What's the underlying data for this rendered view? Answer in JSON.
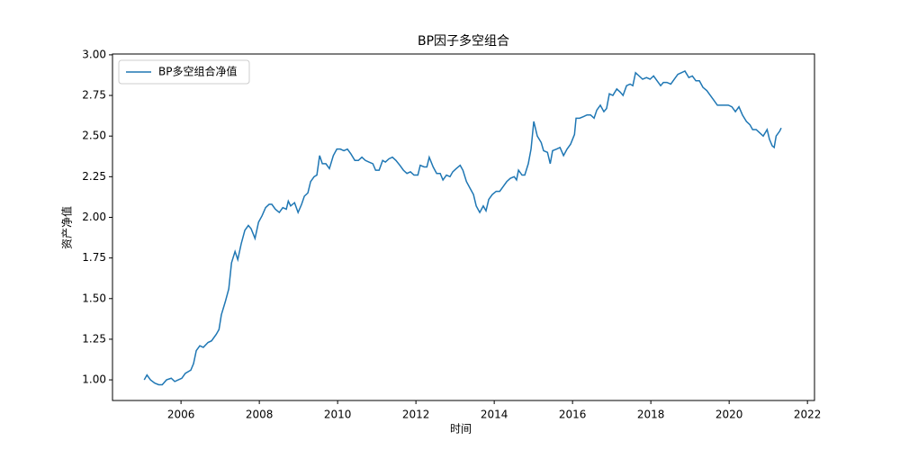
{
  "chart_data": {
    "type": "line",
    "title": "BP因子多空组合",
    "x_label": "时间",
    "y_label": "资产净值",
    "x": [
      2005.06,
      2005.13,
      2005.22,
      2005.33,
      2005.43,
      2005.52,
      2005.63,
      2005.75,
      2005.84,
      2005.93,
      2006.02,
      2006.11,
      2006.25,
      2006.32,
      2006.39,
      2006.48,
      2006.57,
      2006.69,
      2006.78,
      2006.9,
      2006.97,
      2007.03,
      2007.13,
      2007.22,
      2007.29,
      2007.38,
      2007.45,
      2007.54,
      2007.63,
      2007.72,
      2007.79,
      2007.89,
      2007.98,
      2008.07,
      2008.16,
      2008.25,
      2008.32,
      2008.41,
      2008.51,
      2008.6,
      2008.69,
      2008.74,
      2008.8,
      2008.9,
      2008.99,
      2009.08,
      2009.15,
      2009.24,
      2009.31,
      2009.4,
      2009.47,
      2009.54,
      2009.61,
      2009.7,
      2009.79,
      2009.89,
      2009.98,
      2010.07,
      2010.16,
      2010.25,
      2010.34,
      2010.44,
      2010.53,
      2010.62,
      2010.71,
      2010.8,
      2010.9,
      2010.97,
      2011.06,
      2011.15,
      2011.22,
      2011.31,
      2011.4,
      2011.49,
      2011.59,
      2011.68,
      2011.77,
      2011.86,
      2011.95,
      2012.05,
      2012.11,
      2012.21,
      2012.28,
      2012.34,
      2012.44,
      2012.53,
      2012.62,
      2012.69,
      2012.78,
      2012.87,
      2012.94,
      2013.03,
      2013.13,
      2013.2,
      2013.29,
      2013.38,
      2013.47,
      2013.54,
      2013.63,
      2013.72,
      2013.79,
      2013.86,
      2013.95,
      2014.05,
      2014.14,
      2014.23,
      2014.32,
      2014.41,
      2014.51,
      2014.57,
      2014.62,
      2014.71,
      2014.78,
      2014.87,
      2014.94,
      2015.01,
      2015.1,
      2015.2,
      2015.26,
      2015.36,
      2015.43,
      2015.49,
      2015.59,
      2015.68,
      2015.77,
      2015.86,
      2015.95,
      2016.05,
      2016.09,
      2016.18,
      2016.28,
      2016.37,
      2016.46,
      2016.55,
      2016.62,
      2016.71,
      2016.8,
      2016.87,
      2016.94,
      2017.03,
      2017.13,
      2017.22,
      2017.29,
      2017.38,
      2017.47,
      2017.54,
      2017.61,
      2017.7,
      2017.79,
      2017.89,
      2017.98,
      2018.07,
      2018.16,
      2018.25,
      2018.32,
      2018.41,
      2018.51,
      2018.6,
      2018.69,
      2018.78,
      2018.87,
      2018.97,
      2019.06,
      2019.15,
      2019.24,
      2019.33,
      2019.43,
      2019.52,
      2019.61,
      2019.7,
      2019.79,
      2019.89,
      2019.98,
      2020.07,
      2020.16,
      2020.25,
      2020.34,
      2020.44,
      2020.53,
      2020.6,
      2020.69,
      2020.78,
      2020.87,
      2020.97,
      2021.03,
      2021.1,
      2021.15,
      2021.2,
      2021.29,
      2021.33
    ],
    "series": [
      {
        "name": "BP多空组合净值",
        "color": "#1f77b4",
        "values": [
          1.0,
          1.03,
          1.0,
          0.98,
          0.97,
          0.97,
          1.0,
          1.01,
          0.99,
          1.0,
          1.01,
          1.04,
          1.06,
          1.1,
          1.18,
          1.21,
          1.2,
          1.23,
          1.24,
          1.28,
          1.31,
          1.4,
          1.48,
          1.56,
          1.72,
          1.79,
          1.74,
          1.84,
          1.92,
          1.95,
          1.93,
          1.87,
          1.97,
          2.01,
          2.06,
          2.08,
          2.08,
          2.05,
          2.03,
          2.06,
          2.05,
          2.1,
          2.07,
          2.09,
          2.03,
          2.08,
          2.13,
          2.15,
          2.22,
          2.25,
          2.26,
          2.38,
          2.33,
          2.33,
          2.3,
          2.38,
          2.42,
          2.42,
          2.41,
          2.42,
          2.39,
          2.35,
          2.35,
          2.37,
          2.35,
          2.34,
          2.33,
          2.29,
          2.29,
          2.35,
          2.34,
          2.36,
          2.37,
          2.35,
          2.32,
          2.29,
          2.27,
          2.28,
          2.26,
          2.26,
          2.32,
          2.31,
          2.31,
          2.37,
          2.31,
          2.27,
          2.27,
          2.23,
          2.26,
          2.25,
          2.28,
          2.3,
          2.32,
          2.29,
          2.22,
          2.18,
          2.14,
          2.07,
          2.03,
          2.07,
          2.04,
          2.11,
          2.14,
          2.16,
          2.16,
          2.19,
          2.22,
          2.24,
          2.25,
          2.23,
          2.29,
          2.26,
          2.26,
          2.33,
          2.42,
          2.59,
          2.5,
          2.46,
          2.41,
          2.4,
          2.33,
          2.41,
          2.42,
          2.43,
          2.38,
          2.42,
          2.45,
          2.51,
          2.61,
          2.61,
          2.62,
          2.63,
          2.63,
          2.61,
          2.66,
          2.69,
          2.65,
          2.67,
          2.76,
          2.75,
          2.79,
          2.77,
          2.75,
          2.81,
          2.82,
          2.81,
          2.89,
          2.87,
          2.85,
          2.86,
          2.85,
          2.87,
          2.84,
          2.81,
          2.83,
          2.83,
          2.82,
          2.85,
          2.88,
          2.89,
          2.9,
          2.86,
          2.87,
          2.84,
          2.84,
          2.8,
          2.78,
          2.75,
          2.72,
          2.69,
          2.69,
          2.69,
          2.69,
          2.68,
          2.65,
          2.68,
          2.63,
          2.59,
          2.57,
          2.54,
          2.54,
          2.52,
          2.5,
          2.54,
          2.48,
          2.44,
          2.43,
          2.5,
          2.53,
          2.55
        ]
      }
    ],
    "xlim": [
      2004.25,
      2022.18
    ],
    "ylim": [
      0.873,
      3.005
    ],
    "xticks": [
      2006,
      2008,
      2010,
      2012,
      2014,
      2016,
      2018,
      2020,
      2022
    ],
    "yticks": [
      {
        "value": 1,
        "label": "1.00"
      },
      {
        "value": 1.25,
        "label": "1.25"
      },
      {
        "value": 1.5,
        "label": "1.50"
      },
      {
        "value": 1.75,
        "label": "1.75"
      },
      {
        "value": 2,
        "label": "2.00"
      },
      {
        "value": 2.25,
        "label": "2.25"
      },
      {
        "value": 2.5,
        "label": "2.50"
      },
      {
        "value": 2.75,
        "label": "2.75"
      },
      {
        "value": 3,
        "label": "3.00"
      }
    ],
    "grid": false,
    "legend": "upper-left"
  }
}
